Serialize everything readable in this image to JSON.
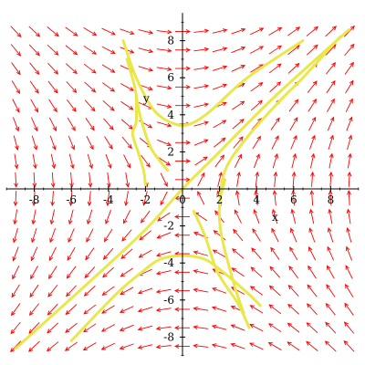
{
  "chart_data": {
    "type": "direction_field",
    "title": "",
    "xlabel": "x",
    "ylabel": "y",
    "xlim": [
      -9.5,
      9.5
    ],
    "ylim": [
      -9.0,
      9.5
    ],
    "x_ticks": [
      -8,
      -6,
      -4,
      -2,
      0,
      2,
      4,
      6,
      8
    ],
    "y_ticks": [
      -8,
      -6,
      -4,
      -2,
      2,
      4,
      6,
      8
    ],
    "x_tick_labels": [
      "-8",
      "-6",
      "-4",
      "-2",
      "0",
      "2",
      "4",
      "6",
      "8"
    ],
    "y_tick_labels": [
      "-8",
      "-6",
      "-4",
      "-2",
      "2",
      "4",
      "6",
      "8"
    ],
    "field": {
      "dx": "y",
      "dy": "x",
      "grid_x": [
        -9,
        9,
        1
      ],
      "grid_y": [
        -8.5,
        8.5,
        1
      ],
      "color": "#ff0000"
    },
    "solution_color": "#e8e84a",
    "series": [
      {
        "values": [
          [
            -2.5,
            5
          ],
          [
            -2.5,
            3.6
          ],
          [
            -2.7,
            3
          ],
          [
            -2.4,
            2
          ],
          [
            -2.1,
            1
          ],
          [
            -2.0,
            0.2
          ]
        ]
      },
      {
        "values": [
          [
            -3.2,
            8.0
          ],
          [
            -2.5,
            6.0
          ],
          [
            -1.5,
            4.2
          ],
          [
            -0.4,
            3.5
          ],
          [
            0.4,
            3.5
          ],
          [
            1.5,
            4.2
          ],
          [
            3.5,
            6.0
          ],
          [
            6.5,
            8.0
          ]
        ]
      },
      {
        "values": [
          [
            -3.0,
            7.0
          ],
          [
            -2.6,
            5.6
          ],
          [
            -2.3,
            4.0
          ],
          [
            -1.7,
            2.2
          ],
          [
            -0.8,
            1.0
          ]
        ]
      },
      {
        "values": [
          [
            -9.0,
            -8.6
          ],
          [
            -5,
            -5
          ],
          [
            -2,
            -2.2
          ],
          [
            0,
            0
          ],
          [
            2,
            2
          ],
          [
            5,
            5
          ],
          [
            9,
            8.6
          ]
        ]
      },
      {
        "values": [
          [
            -6,
            -8.2
          ],
          [
            -3.6,
            -5.7
          ],
          [
            -2.2,
            -4.5
          ],
          [
            -1.2,
            -3.8
          ],
          [
            0,
            -3.6
          ],
          [
            1.2,
            -3.8
          ],
          [
            2.2,
            -4.5
          ],
          [
            3.6,
            -5.7
          ],
          [
            4.2,
            -6.3
          ]
        ]
      },
      {
        "values": [
          [
            0.6,
            -1.2
          ],
          [
            1.2,
            -2.5
          ],
          [
            1.9,
            -4.5
          ],
          [
            3.0,
            -6.2
          ],
          [
            3.6,
            -7.5
          ]
        ]
      },
      {
        "values": [
          [
            2.3,
            0.5
          ],
          [
            2.0,
            -0.8
          ],
          [
            2.1,
            -2.5
          ],
          [
            2.8,
            -5.2
          ],
          [
            3.3,
            -6.7
          ]
        ]
      },
      {
        "values": [
          [
            2.0,
            -1.0
          ],
          [
            2.3,
            1.0
          ],
          [
            3.5,
            2.8
          ],
          [
            5.3,
            4.8
          ],
          [
            6.5,
            6.0
          ],
          [
            8.5,
            8.2
          ]
        ]
      }
    ]
  }
}
